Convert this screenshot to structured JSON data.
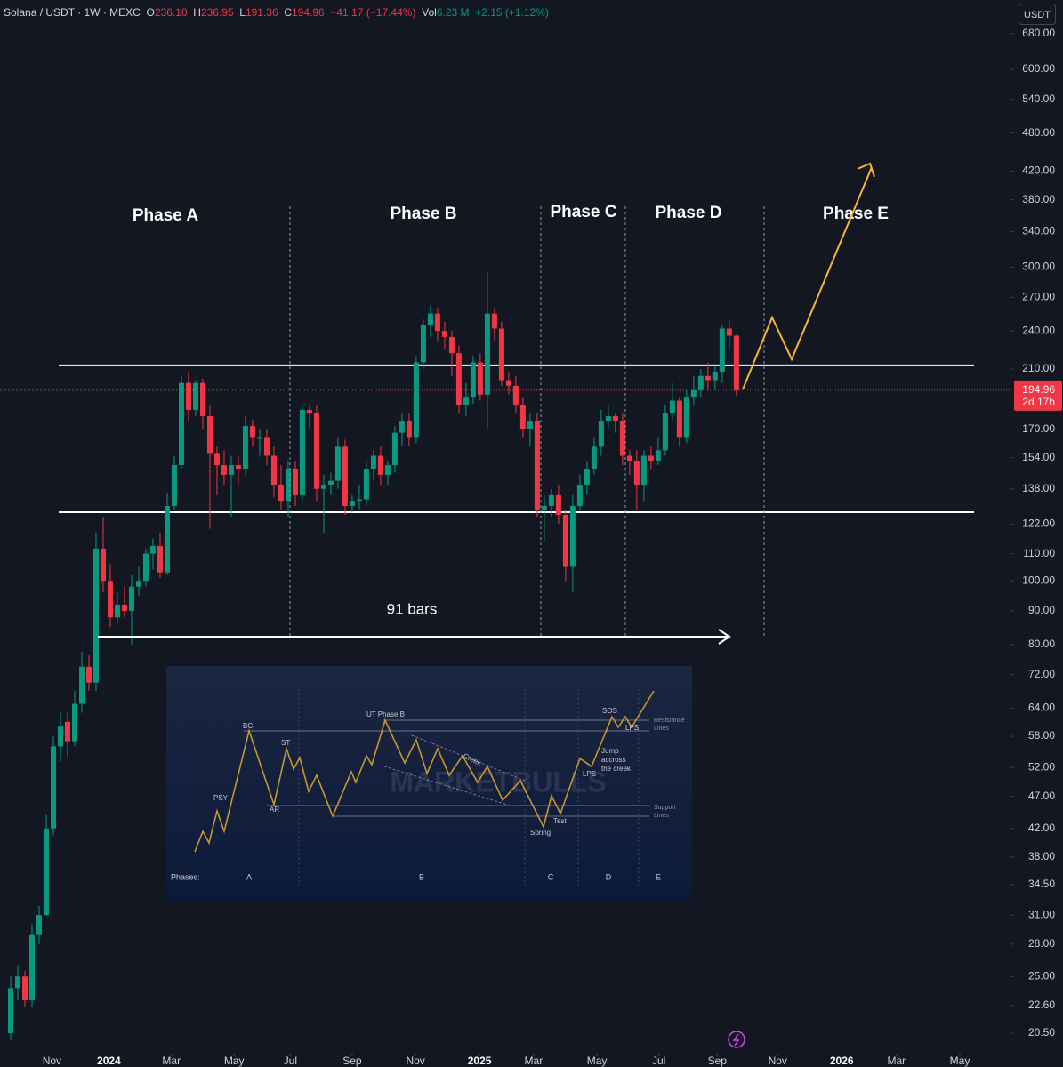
{
  "header": {
    "symbol": "Solana / USDT · 1W · MEXC",
    "ohlc": [
      {
        "key": "O",
        "value": "236.10"
      },
      {
        "key": "H",
        "value": "236.95"
      },
      {
        "key": "L",
        "value": "191.36"
      },
      {
        "key": "C",
        "value": "194.96"
      }
    ],
    "change": "−41.17 (−17.44%)",
    "vol_label": "Vol",
    "volume": "6.23 M",
    "vol_change": "+2.15 (+1.12%)"
  },
  "currency": "USDT",
  "chart_data": {
    "type": "candlestick",
    "log_scale": true,
    "grid": false,
    "up_color": "#089981",
    "down_color": "#f23645",
    "x": [
      0,
      1,
      2,
      3,
      4,
      5,
      6,
      7,
      8,
      9,
      10,
      11,
      12,
      13,
      14,
      15,
      16,
      17,
      18,
      19,
      20,
      21,
      22,
      23,
      24,
      25,
      26,
      27,
      28,
      29,
      30,
      31,
      32,
      33,
      34,
      35,
      36,
      37,
      38,
      39,
      40,
      41,
      42,
      43,
      44,
      45,
      46,
      47,
      48,
      49,
      50,
      51,
      52,
      53,
      54,
      55,
      56,
      57,
      58,
      59,
      60,
      61,
      62,
      63,
      64,
      65,
      66,
      67,
      68,
      69,
      70,
      71,
      72,
      73,
      74,
      75,
      76,
      77,
      78,
      79,
      80,
      81,
      82,
      83,
      84,
      85,
      86,
      87,
      88,
      89,
      90,
      91,
      92,
      93,
      94,
      95,
      96,
      97,
      98,
      99,
      100,
      101,
      102
    ],
    "open": [
      20.5,
      24,
      25,
      23,
      29,
      31,
      42,
      56,
      61,
      57,
      65,
      74,
      70,
      112,
      100,
      88,
      92,
      90,
      98,
      100,
      110,
      113,
      103,
      130,
      150,
      200,
      182,
      200,
      178,
      156,
      150,
      145,
      150,
      148,
      172,
      165,
      165,
      155,
      140,
      132,
      148,
      135,
      182,
      180,
      138,
      140,
      142,
      160,
      130,
      132,
      133,
      148,
      155,
      145,
      150,
      168,
      175,
      165,
      215,
      245,
      255,
      240,
      235,
      222,
      185,
      190,
      215,
      192,
      255,
      242,
      202,
      198,
      185,
      170,
      175,
      128,
      130,
      135,
      126,
      105,
      130,
      140,
      148,
      160,
      175,
      178,
      175,
      155,
      152,
      140,
      155,
      152,
      158,
      180,
      188,
      165,
      190,
      195,
      205,
      202,
      208,
      242,
      236.1
    ],
    "high": [
      25,
      26,
      25.5,
      30,
      32,
      44,
      58,
      63,
      63,
      68,
      78,
      77,
      118,
      125,
      106,
      96,
      98,
      102,
      105,
      112,
      116,
      118,
      136,
      155,
      205,
      208,
      202,
      203,
      185,
      160,
      158,
      155,
      155,
      178,
      176,
      170,
      170,
      160,
      150,
      152,
      152,
      185,
      185,
      185,
      145,
      146,
      165,
      164,
      135,
      140,
      152,
      158,
      160,
      152,
      172,
      180,
      180,
      220,
      250,
      262,
      260,
      248,
      240,
      228,
      200,
      220,
      222,
      295,
      260,
      248,
      208,
      205,
      190,
      180,
      180,
      135,
      138,
      140,
      128,
      135,
      145,
      152,
      165,
      182,
      185,
      180,
      180,
      158,
      158,
      158,
      160,
      165,
      185,
      200,
      190,
      195,
      205,
      210,
      215,
      212,
      245,
      250,
      236.95
    ],
    "low": [
      20,
      23,
      22.5,
      22.5,
      28,
      31,
      41,
      53,
      54,
      56,
      63,
      68,
      68,
      96,
      85,
      86,
      88,
      80,
      95,
      98,
      104,
      101,
      102,
      128,
      148,
      175,
      178,
      170,
      120,
      135,
      140,
      125,
      140,
      145,
      160,
      155,
      150,
      134,
      128,
      125,
      130,
      132,
      170,
      132,
      118,
      135,
      138,
      126,
      127,
      128,
      130,
      142,
      140,
      140,
      146,
      160,
      160,
      162,
      210,
      235,
      232,
      225,
      205,
      180,
      178,
      186,
      188,
      170,
      232,
      198,
      192,
      180,
      165,
      160,
      125,
      115,
      125,
      122,
      100,
      96,
      128,
      135,
      145,
      155,
      170,
      168,
      150,
      145,
      128,
      132,
      148,
      150,
      155,
      175,
      160,
      162,
      185,
      190,
      195,
      195,
      200,
      225,
      191.36
    ],
    "close": [
      24,
      25,
      23,
      29,
      31,
      42,
      56,
      60,
      57,
      65,
      74,
      70,
      112,
      100,
      88,
      92,
      90,
      98,
      100,
      110,
      113,
      103,
      130,
      150,
      200,
      182,
      200,
      178,
      156,
      150,
      145,
      150,
      148,
      172,
      165,
      165,
      155,
      140,
      132,
      148,
      135,
      182,
      180,
      138,
      140,
      142,
      160,
      130,
      132,
      133,
      148,
      155,
      145,
      150,
      168,
      175,
      165,
      215,
      245,
      255,
      240,
      235,
      222,
      185,
      190,
      215,
      192,
      255,
      242,
      202,
      198,
      185,
      170,
      175,
      128,
      130,
      135,
      126,
      105,
      130,
      140,
      148,
      160,
      175,
      178,
      175,
      155,
      152,
      140,
      155,
      152,
      158,
      180,
      188,
      165,
      190,
      195,
      205,
      202,
      208,
      242,
      236,
      194.96
    ],
    "xlim": [
      -1.5,
      140.4
    ],
    "xticks": [
      {
        "value": 5.8,
        "label": "Nov"
      },
      {
        "value": 13.8,
        "label": "2024"
      },
      {
        "value": 22.6,
        "label": "Mar"
      },
      {
        "value": 31.4,
        "label": "May"
      },
      {
        "value": 39.3,
        "label": "Jul"
      },
      {
        "value": 48,
        "label": "Sep"
      },
      {
        "value": 56.9,
        "label": "Nov"
      },
      {
        "value": 65.9,
        "label": "2025"
      },
      {
        "value": 73.5,
        "label": "Mar"
      },
      {
        "value": 82.4,
        "label": "May"
      },
      {
        "value": 91.1,
        "label": "Jul"
      },
      {
        "value": 99.3,
        "label": "Sep"
      },
      {
        "value": 107.8,
        "label": "Nov"
      },
      {
        "value": 116.8,
        "label": "2026"
      },
      {
        "value": 124.5,
        "label": "Mar"
      },
      {
        "value": 133.4,
        "label": "May"
      }
    ],
    "ylim": [
      19.08,
      765
    ],
    "yticks": [
      {
        "value": 680,
        "label": "680.00"
      },
      {
        "value": 600,
        "label": "600.00"
      },
      {
        "value": 540,
        "label": "540.00"
      },
      {
        "value": 480,
        "label": "480.00"
      },
      {
        "value": 420,
        "label": "420.00"
      },
      {
        "value": 380,
        "label": "380.00"
      },
      {
        "value": 340,
        "label": "340.00"
      },
      {
        "value": 300,
        "label": "300.00"
      },
      {
        "value": 270,
        "label": "270.00"
      },
      {
        "value": 240,
        "label": "240.00"
      },
      {
        "value": 210,
        "label": "210.00"
      },
      {
        "value": 170,
        "label": "170.00"
      },
      {
        "value": 154,
        "label": "154.00"
      },
      {
        "value": 138,
        "label": "138.00"
      },
      {
        "value": 122,
        "label": "122.00"
      },
      {
        "value": 110,
        "label": "110.00"
      },
      {
        "value": 100,
        "label": "100.00"
      },
      {
        "value": 90,
        "label": "90.00"
      },
      {
        "value": 80,
        "label": "80.00"
      },
      {
        "value": 72,
        "label": "72.00"
      },
      {
        "value": 64,
        "label": "64.00"
      },
      {
        "value": 58,
        "label": "58.00"
      },
      {
        "value": 52,
        "label": "52.00"
      },
      {
        "value": 47,
        "label": "47.00"
      },
      {
        "value": 42,
        "label": "42.00"
      },
      {
        "value": 38,
        "label": "38.00"
      },
      {
        "value": 34.5,
        "label": "34.50"
      },
      {
        "value": 31,
        "label": "31.00"
      },
      {
        "value": 28,
        "label": "28.00"
      },
      {
        "value": 25,
        "label": "25.00"
      },
      {
        "value": 22.6,
        "label": "22.60"
      },
      {
        "value": 20.5,
        "label": "20.50"
      }
    ],
    "current_price": 194.96,
    "countdown": "2d 17h",
    "levels": [
      212.7,
      127.2
    ],
    "annotations": {
      "phases": [
        "Phase A",
        "Phase B",
        "Phase C",
        "Phase D",
        "Phase E"
      ],
      "bars": "91 bars"
    },
    "inset": {
      "labels": [
        "UT Phase B",
        "BC",
        "ST",
        "PSY",
        "AR",
        "Creek",
        "SOS",
        "LPS",
        "Resistance",
        "Lines",
        "Jump",
        "accross",
        "the creek",
        "LPS",
        "Support",
        "Lines",
        "Test",
        "Spring"
      ],
      "watermark": "MARKETBULLS",
      "phases_label": "Phases:",
      "phases": [
        "A",
        "B",
        "C",
        "D",
        "E"
      ]
    }
  }
}
